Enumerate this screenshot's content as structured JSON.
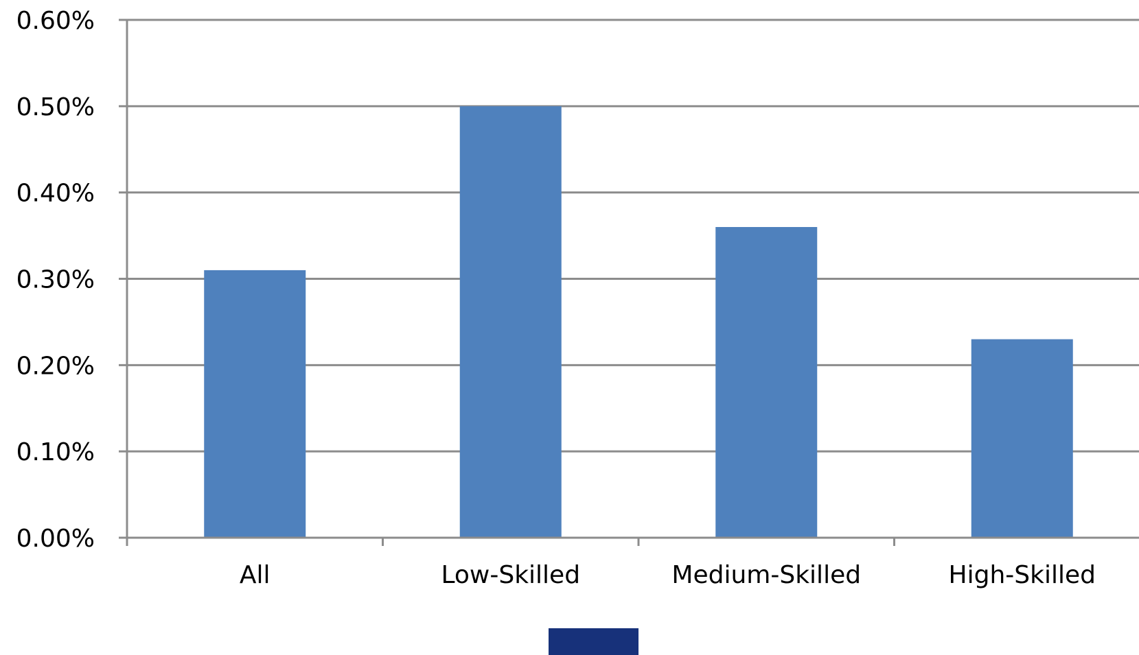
{
  "chart_data": {
    "type": "bar",
    "categories": [
      "All",
      "Low-Skilled",
      "Medium-Skilled",
      "High-Skilled"
    ],
    "values": [
      0.31,
      0.5,
      0.36,
      0.23
    ],
    "y_tick_labels": [
      "0.00%",
      "0.10%",
      "0.20%",
      "0.30%",
      "0.40%",
      "0.50%",
      "0.60%"
    ],
    "y_ticks": [
      0,
      0.1,
      0.2,
      0.3,
      0.4,
      0.5,
      0.6
    ],
    "ylim": [
      0,
      0.6
    ],
    "y_unit": "%",
    "title": "",
    "xlabel": "",
    "ylabel": "",
    "grid": true,
    "legend_position": "bottom",
    "colors": {
      "bar": "#4F81BD",
      "legend_swatch": "#17317A",
      "grid": "#8C8C8C",
      "axis": "#8C8C8C"
    }
  }
}
